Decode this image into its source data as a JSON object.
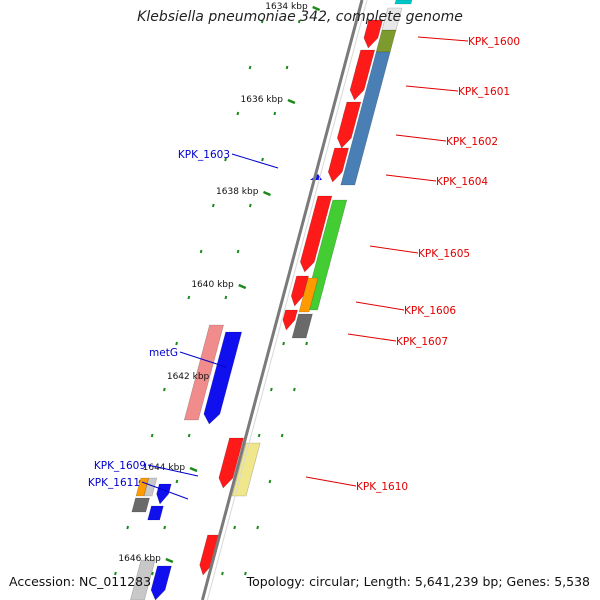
{
  "title": "Klebsiella pneumoniae 342, complete genome",
  "footer": {
    "accession": "Accession: NC_011283",
    "summary": "Topology: circular; Length: 5,641,239 bp; Genes: 5,538"
  },
  "colors": {
    "backbone": "#7a7a7a",
    "tick": "#1a8a1a",
    "label_right": "#e00000",
    "label_left": "#0000cc",
    "red": "#ff1a1a",
    "blue": "#1010ee",
    "steelblue": "#4a7fb5",
    "green": "#44cc33",
    "olive": "#7c9a2e",
    "orange": "#ff9a00",
    "gray": "#6a6a6a",
    "lightgray": "#c8c8c8",
    "pink": "#f08c8c",
    "yellow": "#f0e68c",
    "cyan": "#00c8c8"
  },
  "kbp_labels": [
    "1634 kbp",
    "1636 kbp",
    "1638 kbp",
    "1640 kbp",
    "1642 kbp",
    "1644 kbp",
    "1646 kbp"
  ],
  "right_gene_labels": [
    "KPK_1600",
    "KPK_1601",
    "KPK_1602",
    "KPK_1604",
    "KPK_1605",
    "KPK_1606",
    "KPK_1607",
    "KPK_1610"
  ],
  "left_gene_labels": [
    "KPK_1603",
    "metG",
    "KPK_1609",
    "KPK_1611"
  ]
}
